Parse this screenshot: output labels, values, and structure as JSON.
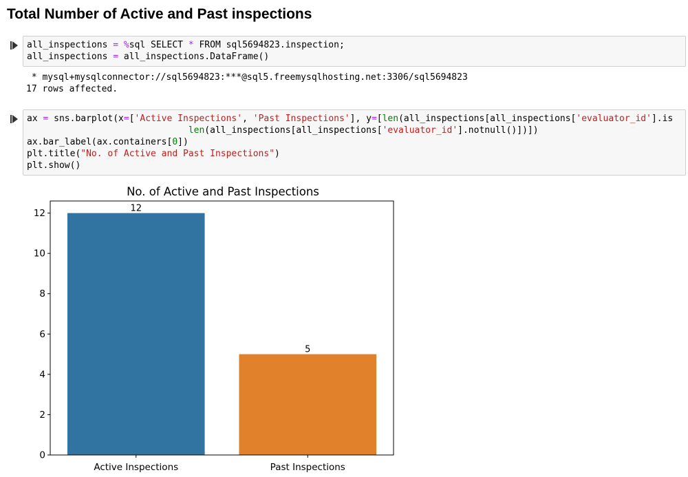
{
  "heading": "Total Number of Active and Past inspections",
  "cell1": {
    "code": [
      [
        [
          "all_inspections ",
          ""
        ],
        [
          "=",
          "op"
        ],
        [
          " ",
          ""
        ],
        [
          "%",
          "mag"
        ],
        [
          "sql SELECT ",
          ""
        ],
        [
          "*",
          "op"
        ],
        [
          " FROM sql5694823.inspection;",
          ""
        ]
      ],
      [
        [
          "all_inspections ",
          ""
        ],
        [
          "=",
          "op"
        ],
        [
          " all_inspections.DataFrame()",
          ""
        ]
      ]
    ],
    "output": [
      " * mysql+mysqlconnector://sql5694823:***@sql5.freemysqlhosting.net:3306/sql5694823",
      "17 rows affected."
    ]
  },
  "cell2": {
    "code": [
      [
        [
          "ax ",
          ""
        ],
        [
          "=",
          "op"
        ],
        [
          " sns.barplot(x",
          ""
        ],
        [
          "=",
          "op"
        ],
        [
          "[",
          ""
        ],
        [
          "'Active Inspections'",
          "str"
        ],
        [
          ", ",
          ""
        ],
        [
          "'Past Inspections'",
          "str"
        ],
        [
          "], y",
          ""
        ],
        [
          "=",
          "op"
        ],
        [
          "[",
          ""
        ],
        [
          "len",
          "bi"
        ],
        [
          "(all_inspections[all_inspections[",
          ""
        ],
        [
          "'evaluator_id'",
          "str"
        ],
        [
          "].is",
          ""
        ]
      ],
      [
        [
          "                              ",
          ""
        ],
        [
          "len",
          "bi"
        ],
        [
          "(all_inspections[all_inspections[",
          ""
        ],
        [
          "'evaluator_id'",
          "str"
        ],
        [
          "].notnull()])])",
          ""
        ]
      ],
      [
        [
          "ax.bar_label(ax.containers[",
          ""
        ],
        [
          "0",
          "num"
        ],
        [
          "])",
          ""
        ]
      ],
      [
        [
          "plt.title(",
          ""
        ],
        [
          "\"No. of Active and Past Inspections\"",
          "str"
        ],
        [
          ")",
          ""
        ]
      ],
      [
        [
          "plt.show()",
          ""
        ]
      ]
    ]
  },
  "chart_data": {
    "type": "bar",
    "title": "No. of Active and Past Inspections",
    "categories": [
      "Active Inspections",
      "Past Inspections"
    ],
    "values": [
      12,
      5
    ],
    "data_labels": [
      "12",
      "5"
    ],
    "colors": [
      "#3274a1",
      "#e1812c"
    ],
    "ylim": [
      0,
      12.6
    ],
    "yticks": [
      0,
      2,
      4,
      6,
      8,
      10,
      12
    ],
    "xlabel": "",
    "ylabel": "",
    "grid": false
  }
}
